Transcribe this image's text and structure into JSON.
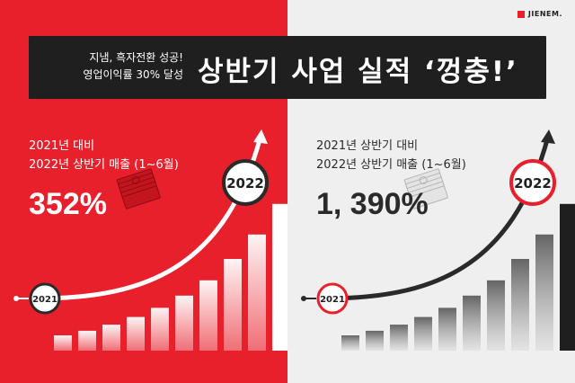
{
  "brand": {
    "logo_text": "JIENEM."
  },
  "banner": {
    "subtitle_line1": "지냄, 흑자전환 성공!",
    "subtitle_line2": "영업이익률 30% 달성",
    "title": "상반기 사업 실적 ‘껑충!’"
  },
  "colors": {
    "red": "#e7202c",
    "dark": "#1f1f1f",
    "light": "#efefef",
    "gray_bar": "#8a8a8a"
  },
  "chart_data": [
    {
      "type": "bar",
      "title": "",
      "line1": "2021년 대비",
      "line2": "2022년 상반기 매출 (1~6월)",
      "headline": "352%",
      "start_label": "2021",
      "end_label": "2022",
      "values": [
        10,
        13,
        17,
        22,
        28,
        36,
        46,
        60,
        76,
        96
      ],
      "ylim": [
        0,
        100
      ],
      "theme": "red"
    },
    {
      "type": "bar",
      "title": "",
      "line1": "2021년 상반기 대비",
      "line2": "2022년 상반기 매출 (1~6월)",
      "headline": "1, 390%",
      "start_label": "2021",
      "end_label": "2022",
      "values": [
        10,
        13,
        17,
        22,
        28,
        36,
        46,
        60,
        76,
        96
      ],
      "ylim": [
        0,
        100
      ],
      "theme": "light"
    }
  ]
}
